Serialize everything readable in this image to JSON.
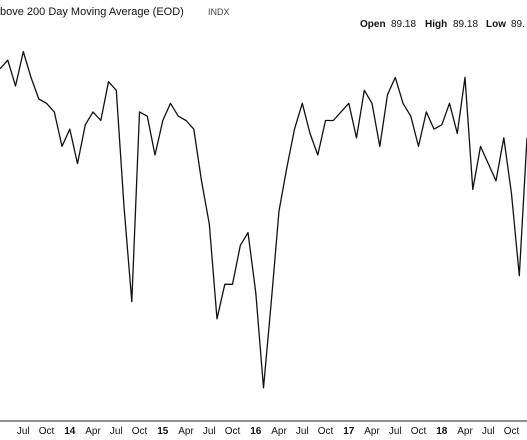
{
  "header": {
    "title": "bove 200 Day Moving Average (EOD)",
    "source": "INDX",
    "ohlc": [
      {
        "label": "Open",
        "value": "89.18"
      },
      {
        "label": "High",
        "value": "89.18"
      },
      {
        "label": "Low",
        "value": "89."
      }
    ]
  },
  "chart_data": {
    "type": "line",
    "title": "bove 200 Day Moving Average (EOD)",
    "xlabel": "",
    "ylabel": "",
    "grid": false,
    "x_tick_labels": [
      "Jul",
      "Oct",
      "14",
      "Apr",
      "Jul",
      "Oct",
      "15",
      "Apr",
      "Jul",
      "Oct",
      "16",
      "Apr",
      "Jul",
      "Oct",
      "17",
      "Apr",
      "Jul",
      "Oct",
      "18",
      "Apr",
      "Jul",
      "Oct"
    ],
    "x_tick_bold": [
      "14",
      "15",
      "16",
      "17",
      "18"
    ],
    "xlim": [
      "2013-04",
      "2018-12"
    ],
    "ylim": [
      10,
      97
    ],
    "series": [
      {
        "color": "#111111",
        "x": [
          "2013-04",
          "2013-05",
          "2013-06",
          "2013-07",
          "2013-08",
          "2013-09",
          "2013-10",
          "2013-11",
          "2013-12",
          "2014-01",
          "2014-02",
          "2014-03",
          "2014-04",
          "2014-05",
          "2014-06",
          "2014-07",
          "2014-08",
          "2014-09",
          "2014-10",
          "2014-11",
          "2014-12",
          "2015-01",
          "2015-02",
          "2015-03",
          "2015-04",
          "2015-05",
          "2015-06",
          "2015-07",
          "2015-08",
          "2015-09",
          "2015-10",
          "2015-11",
          "2015-12",
          "2016-01",
          "2016-02",
          "2016-03",
          "2016-04",
          "2016-05",
          "2016-06",
          "2016-07",
          "2016-08",
          "2016-09",
          "2016-10",
          "2016-11",
          "2016-12",
          "2017-01",
          "2017-02",
          "2017-03",
          "2017-04",
          "2017-05",
          "2017-06",
          "2017-07",
          "2017-08",
          "2017-09",
          "2017-10",
          "2017-11",
          "2017-12",
          "2018-01",
          "2018-02",
          "2018-03",
          "2018-04",
          "2018-05",
          "2018-06",
          "2018-07",
          "2018-08",
          "2018-09",
          "2018-10",
          "2018-11",
          "2018-12"
        ],
        "values": [
          88,
          90,
          84,
          92,
          86,
          81,
          80,
          78,
          70,
          74,
          66,
          75,
          78,
          76,
          85,
          83,
          56,
          34,
          78,
          77,
          68,
          76,
          80,
          77,
          76,
          74,
          62,
          52,
          30,
          38,
          38,
          47,
          50,
          36,
          14,
          34,
          55,
          65,
          74,
          80,
          73,
          68,
          76,
          76,
          78,
          80,
          72,
          83,
          80,
          70,
          82,
          86,
          80,
          77,
          70,
          78,
          74,
          75,
          80,
          73,
          86,
          60,
          70,
          66,
          62,
          72,
          59,
          40,
          72
        ]
      }
    ]
  }
}
